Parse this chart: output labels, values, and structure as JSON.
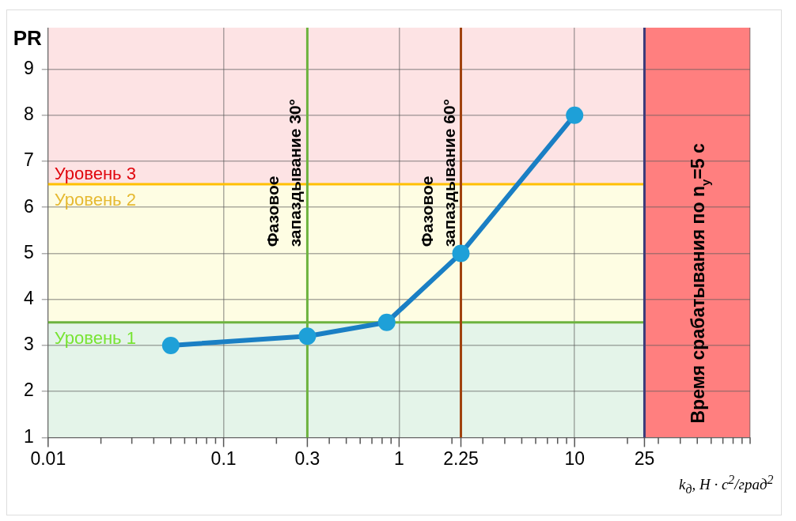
{
  "chart_data": {
    "type": "line",
    "xlabel": "k$_{д}$, Н · с$^{2}$/град$^{2}$",
    "ylabel": "PR",
    "x": [
      0.05,
      0.3,
      0.85,
      2.25,
      10
    ],
    "series": [
      {
        "color": "#1a7fc4",
        "values": [
          3,
          3.2,
          3.5,
          5,
          8
        ]
      }
    ],
    "log": "x",
    "xlim": [
      0.01,
      100
    ],
    "ylim": [
      1,
      9.9
    ],
    "xticks": [
      0.01,
      {
        "value": 0.02,
        "label": null
      },
      {
        "value": 0.03,
        "label": null
      },
      {
        "value": 0.04,
        "label": null
      },
      {
        "value": 0.05,
        "label": null
      },
      {
        "value": 0.06,
        "label": null
      },
      {
        "value": 0.07,
        "label": null
      },
      {
        "value": 0.08,
        "label": null
      },
      {
        "value": 0.09,
        "label": null
      },
      0.1,
      {
        "value": 0.2,
        "label": null
      },
      0.3,
      {
        "value": 0.4,
        "label": null
      },
      {
        "value": 0.5,
        "label": null
      },
      {
        "value": 0.6,
        "label": null
      },
      {
        "value": 0.7,
        "label": null
      },
      {
        "value": 0.8,
        "label": null
      },
      {
        "value": 0.9,
        "label": null
      },
      1,
      {
        "value": 2,
        "label": null
      },
      2.25,
      {
        "value": 3,
        "label": null
      },
      {
        "value": 4,
        "label": null
      },
      {
        "value": 5,
        "label": null
      },
      {
        "value": 6,
        "label": null
      },
      {
        "value": 7,
        "label": null
      },
      {
        "value": 8,
        "label": null
      },
      {
        "value": 9,
        "label": null
      },
      10,
      {
        "value": 20,
        "label": null
      },
      25,
      {
        "value": 30,
        "label": null
      },
      {
        "value": 40,
        "label": null
      },
      {
        "value": 50,
        "label": null
      },
      {
        "value": 60,
        "label": null
      },
      {
        "value": 70,
        "label": null
      },
      {
        "value": 80,
        "label": null
      },
      {
        "value": 90,
        "label": null
      },
      {
        "value": 100,
        "label": null
      }
    ],
    "yticks": [
      1,
      2,
      3,
      4,
      5,
      6,
      7,
      8,
      9
    ],
    "grid": true,
    "legend": false,
    "marker": "circle",
    "line_style": "solid",
    "bands": [
      {
        "axis": "y",
        "from": 1,
        "to": 3.5,
        "color": "#e4f4e9"
      },
      {
        "axis": "y",
        "from": 3.5,
        "to": 6.5,
        "color": "#fefde3"
      },
      {
        "axis": "y",
        "from": 6.5,
        "to": 9.9,
        "color": "#fde3e4",
        "label": "Уровень 3"
      },
      {
        "axis": "x",
        "from": 25,
        "to": 100,
        "color": "#ff7f7f",
        "label": "Время срабатывания по n$_{y}$=5 с"
      }
    ],
    "ref_lines": [
      {
        "axis": "y",
        "value": 3.5,
        "color": "#6db33f",
        "label": "Уровень 1"
      },
      {
        "axis": "y",
        "value": 6.5,
        "color": "#ffc000",
        "label": "Уровень 2"
      },
      {
        "axis": "x",
        "value": 0.3,
        "color": "#6db33f",
        "label": "Фазовое запаздывание 30°"
      },
      {
        "axis": "x",
        "value": 2.25,
        "color": "#a0420e",
        "label": "Фазовое запаздывание 60°"
      },
      {
        "axis": "x",
        "value": 25,
        "color": "#3b3b7a"
      }
    ]
  }
}
